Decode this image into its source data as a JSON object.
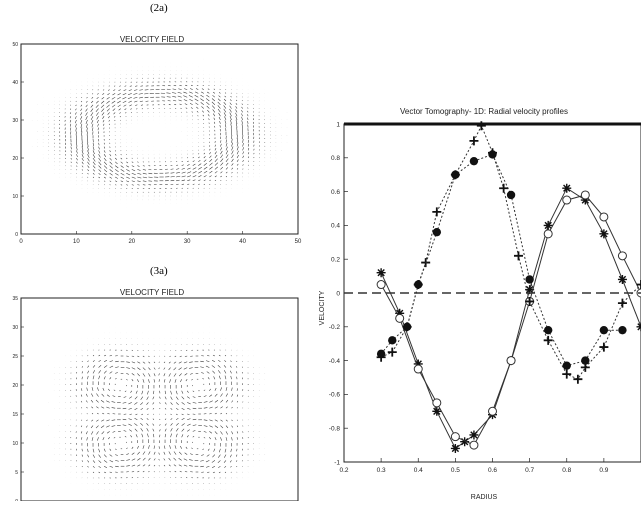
{
  "chart_data": [
    {
      "type": "quiver",
      "caption": "(2a)",
      "title": "VELOCITY  FIELD",
      "xlim": [
        0,
        50
      ],
      "ylim": [
        0,
        50
      ],
      "xticks": [
        "0",
        "10",
        "20",
        "30",
        "40",
        "50"
      ],
      "yticks": [
        "0",
        "10",
        "20",
        "30",
        "40",
        "50"
      ],
      "pattern": "single-vortex-ring",
      "center": [
        25,
        26
      ],
      "ring_radius": [
        14,
        11
      ]
    },
    {
      "type": "quiver",
      "caption": "(3a)",
      "title": "VELOCITY  FIELD",
      "xlim": [
        0,
        50
      ],
      "ylim": [
        0,
        35
      ],
      "xticks": [],
      "yticks": [
        "0",
        "5",
        "10",
        "15",
        "20",
        "25",
        "30",
        "35"
      ],
      "pattern": "four-vortex-cells",
      "center": [
        25,
        15
      ]
    },
    {
      "type": "line",
      "title": "Vector Tomography- 1D: Radial velocity profiles",
      "xlabel": "RADIUS",
      "ylabel": "VELOCITY",
      "xlim": [
        0.2,
        1.0
      ],
      "ylim": [
        -1,
        1
      ],
      "xticks": [
        "0.2",
        "0.3",
        "0.4",
        "0.5",
        "0.6",
        "0.7",
        "0.8",
        "0.9"
      ],
      "yticks": [
        "-1",
        "-0.8",
        "-0.6",
        "-0.4",
        "-0.2",
        "0",
        "0.2",
        "0.4",
        "0.6",
        "0.8",
        "1"
      ],
      "grid": false,
      "series": [
        {
          "marker": "star",
          "line": "solid",
          "x": [
            0.3,
            0.35,
            0.4,
            0.45,
            0.5,
            0.525,
            0.55,
            0.6,
            0.65,
            0.7,
            0.75,
            0.8,
            0.85,
            0.9,
            0.95,
            1.0
          ],
          "y": [
            0.12,
            -0.12,
            -0.42,
            -0.7,
            -0.92,
            -0.88,
            -0.84,
            -0.72,
            -0.4,
            0.02,
            0.4,
            0.62,
            0.55,
            0.35,
            0.08,
            -0.2
          ]
        },
        {
          "marker": "circle-open",
          "line": "solid",
          "x": [
            0.3,
            0.35,
            0.4,
            0.45,
            0.5,
            0.55,
            0.6,
            0.65,
            0.7,
            0.75,
            0.8,
            0.85,
            0.9,
            0.95,
            1.0
          ],
          "y": [
            0.05,
            -0.15,
            -0.45,
            -0.65,
            -0.85,
            -0.9,
            -0.7,
            -0.4,
            -0.05,
            0.35,
            0.55,
            0.58,
            0.45,
            0.22,
            0.0
          ]
        },
        {
          "marker": "plus",
          "line": "dotted",
          "x": [
            0.3,
            0.33,
            0.37,
            0.4,
            0.42,
            0.45,
            0.5,
            0.55,
            0.57,
            0.6,
            0.63,
            0.67,
            0.7,
            0.75,
            0.8,
            0.83,
            0.85,
            0.9,
            0.95,
            1.0
          ],
          "y": [
            -0.38,
            -0.35,
            -0.2,
            0.05,
            0.18,
            0.48,
            0.7,
            0.9,
            0.99,
            0.83,
            0.62,
            0.22,
            -0.05,
            -0.28,
            -0.48,
            -0.51,
            -0.44,
            -0.32,
            -0.06,
            0.05
          ]
        },
        {
          "marker": "circle-filled",
          "line": "dotted",
          "x": [
            0.3,
            0.33,
            0.37,
            0.4,
            0.45,
            0.5,
            0.55,
            0.6,
            0.65,
            0.7,
            0.75,
            0.8,
            0.85,
            0.9,
            0.95
          ],
          "y": [
            -0.36,
            -0.28,
            -0.2,
            0.05,
            0.36,
            0.7,
            0.78,
            0.82,
            0.58,
            0.08,
            -0.22,
            -0.43,
            -0.4,
            -0.22,
            -0.22
          ]
        },
        {
          "marker": "none",
          "line": "dashed",
          "x": [
            0.2,
            1.0
          ],
          "y": [
            0,
            0
          ]
        }
      ]
    }
  ]
}
